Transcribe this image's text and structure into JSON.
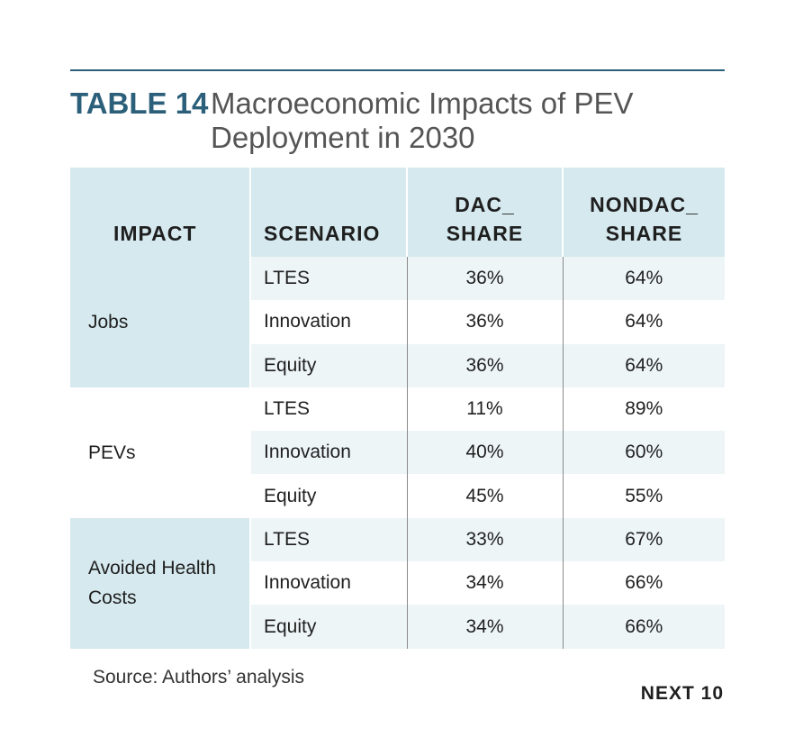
{
  "title": {
    "label": "TABLE 14",
    "text": "Macroeconomic Impacts of PEV Deployment in 2030"
  },
  "table": {
    "headers": [
      "IMPACT",
      "SCENARIO",
      "DAC_ SHARE",
      "NONDAC_ SHARE"
    ],
    "groups": [
      {
        "impact": "Jobs",
        "rows": [
          {
            "scenario": "LTES",
            "dac": "36%",
            "nondac": "64%"
          },
          {
            "scenario": "Innovation",
            "dac": "36%",
            "nondac": "64%"
          },
          {
            "scenario": "Equity",
            "dac": "36%",
            "nondac": "64%"
          }
        ]
      },
      {
        "impact": "PEVs",
        "rows": [
          {
            "scenario": "LTES",
            "dac": "11%",
            "nondac": "89%"
          },
          {
            "scenario": "Innovation",
            "dac": "40%",
            "nondac": "60%"
          },
          {
            "scenario": "Equity",
            "dac": "45%",
            "nondac": "55%"
          }
        ]
      },
      {
        "impact": "Avoided Health Costs",
        "rows": [
          {
            "scenario": "LTES",
            "dac": "33%",
            "nondac": "67%"
          },
          {
            "scenario": "Innovation",
            "dac": "34%",
            "nondac": "66%"
          },
          {
            "scenario": "Equity",
            "dac": "34%",
            "nondac": "66%"
          }
        ]
      }
    ]
  },
  "source": "Source: Authors’ analysis",
  "brand": "NEXT 10",
  "colors": {
    "accent": "#2b5f7a",
    "header_bg": "#d5e9ee",
    "alt_row_bg": "#eef5f7"
  }
}
